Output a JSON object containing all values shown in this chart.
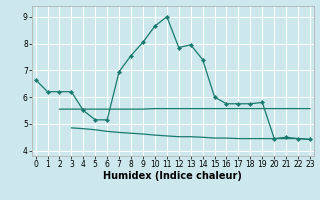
{
  "xlabel": "Humidex (Indice chaleur)",
  "bg_color": "#cce8ec",
  "grid_color": "#ffffff",
  "line_color": "#1a7a6e",
  "x_top": [
    0,
    1,
    2,
    3,
    4,
    5,
    6,
    7,
    8,
    9,
    10,
    11,
    12,
    13,
    14,
    15,
    16,
    17,
    18,
    19,
    20,
    21,
    22,
    23
  ],
  "y_top": [
    6.65,
    6.2,
    6.2,
    6.2,
    5.5,
    5.15,
    5.15,
    6.95,
    7.55,
    8.05,
    8.65,
    9.0,
    7.85,
    7.95,
    7.4,
    6.0,
    5.75,
    5.75,
    5.75,
    5.8,
    4.45,
    4.5,
    4.45,
    4.42
  ],
  "x_mid": [
    2,
    3,
    4,
    5,
    6,
    7,
    8,
    9,
    10,
    11,
    12,
    13,
    14,
    15,
    16,
    17,
    18,
    19,
    20,
    21,
    22,
    23
  ],
  "y_mid": [
    5.55,
    5.55,
    5.55,
    5.55,
    5.55,
    5.55,
    5.55,
    5.55,
    5.57,
    5.57,
    5.57,
    5.57,
    5.57,
    5.57,
    5.57,
    5.57,
    5.57,
    5.57,
    5.57,
    5.57,
    5.57,
    5.57
  ],
  "x_bot": [
    3,
    4,
    5,
    6,
    7,
    8,
    9,
    10,
    11,
    12,
    13,
    14,
    15,
    16,
    17,
    18,
    19,
    20,
    21,
    22,
    23
  ],
  "y_bot": [
    4.85,
    4.82,
    4.78,
    4.72,
    4.68,
    4.65,
    4.62,
    4.58,
    4.55,
    4.52,
    4.52,
    4.5,
    4.47,
    4.47,
    4.45,
    4.45,
    4.45,
    4.45,
    4.45,
    4.45,
    4.42
  ],
  "ylim": [
    3.8,
    9.4
  ],
  "xlim": [
    -0.3,
    23.3
  ],
  "yticks": [
    4,
    5,
    6,
    7,
    8,
    9
  ],
  "xticks": [
    0,
    1,
    2,
    3,
    4,
    5,
    6,
    7,
    8,
    9,
    10,
    11,
    12,
    13,
    14,
    15,
    16,
    17,
    18,
    19,
    20,
    21,
    22,
    23
  ],
  "tick_fontsize": 5.5,
  "xlabel_fontsize": 7.0
}
